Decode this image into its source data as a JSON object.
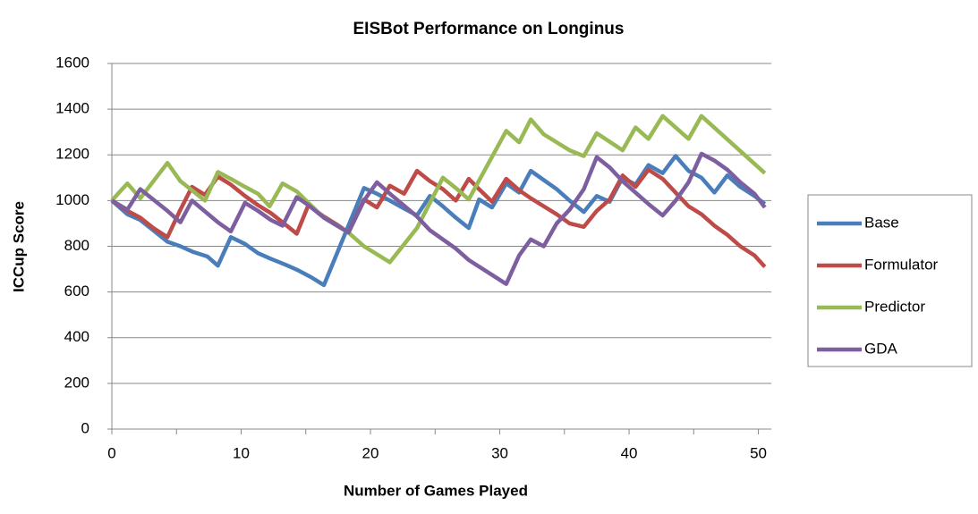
{
  "chart_data": {
    "type": "line",
    "title": "EISBot Performance on Longinus",
    "xlabel": "Number of Games Played",
    "ylabel": "ICCup Score",
    "xlim": [
      0,
      51
    ],
    "xticks": [
      0,
      10,
      20,
      30,
      40,
      50
    ],
    "xminorticks": [
      5,
      15,
      25,
      35,
      45
    ],
    "ylim": [
      0,
      1600
    ],
    "yticks": [
      0,
      200,
      400,
      600,
      800,
      1000,
      1200,
      1400,
      1600
    ],
    "grid": true,
    "legend": "right",
    "series": [
      {
        "name": "Base",
        "color": "#4a7ebb",
        "x": [
          0,
          1.2,
          2.2,
          3.2,
          4.3,
          5.3,
          6.3,
          7.4,
          8.2,
          9.2,
          10.3,
          11.3,
          12.3,
          13.4,
          14.4,
          15.4,
          16.4,
          19.5,
          20.5,
          21.5,
          22.6,
          23.6,
          24.6,
          25.6,
          26.6,
          27.6,
          28.4,
          29.4,
          30.5,
          31.5,
          32.4,
          33.4,
          34.4,
          35.4,
          36.5,
          37.5,
          38.5,
          39.5,
          40.5,
          41.5,
          42.6,
          43.6,
          44.6,
          45.6,
          46.6,
          47.6,
          48.6,
          49.7,
          50.5
        ],
        "values": [
          1000,
          940,
          915,
          870,
          820,
          800,
          775,
          755,
          715,
          840,
          810,
          770,
          745,
          720,
          695,
          665,
          630,
          1055,
          1030,
          1000,
          965,
          935,
          1020,
          975,
          925,
          880,
          1005,
          970,
          1075,
          1035,
          1130,
          1090,
          1050,
          1000,
          950,
          1020,
          995,
          1100,
          1070,
          1155,
          1120,
          1195,
          1130,
          1100,
          1035,
          1110,
          1060,
          1020,
          985
        ]
      },
      {
        "name": "Formulator",
        "color": "#be4b48",
        "x": [
          0,
          1.2,
          2.2,
          3.2,
          4.3,
          5.3,
          6.2,
          7.2,
          8.2,
          9.2,
          10.3,
          11.3,
          12.3,
          13.2,
          14.3,
          15.2,
          16.4,
          17.4,
          18.3,
          19.5,
          20.5,
          21.5,
          22.6,
          23.6,
          24.6,
          25.6,
          26.6,
          27.6,
          28.4,
          29.4,
          30.5,
          31.5,
          32.4,
          33.4,
          34.4,
          35.4,
          36.5,
          37.5,
          38.5,
          39.5,
          40.5,
          41.5,
          42.6,
          43.6,
          44.6,
          45.6,
          46.6,
          47.6,
          48.6,
          49.7,
          50.5
        ],
        "values": [
          1000,
          955,
          925,
          880,
          840,
          960,
          1060,
          1025,
          1105,
          1070,
          1020,
          980,
          945,
          905,
          855,
          980,
          930,
          895,
          860,
          1005,
          970,
          1065,
          1030,
          1130,
          1085,
          1050,
          1000,
          1095,
          1050,
          995,
          1095,
          1045,
          1010,
          975,
          940,
          900,
          885,
          955,
          1005,
          1110,
          1060,
          1135,
          1095,
          1035,
          975,
          940,
          890,
          850,
          800,
          760,
          710
        ]
      },
      {
        "name": "Predictor",
        "color": "#98b954",
        "x": [
          0,
          1.2,
          2.2,
          4.3,
          5.3,
          7.2,
          8.2,
          9.2,
          10.3,
          11.3,
          12.2,
          13.2,
          14.3,
          15.2,
          16.4,
          18.3,
          19.5,
          21.5,
          23.6,
          25.6,
          26.6,
          27.6,
          30.5,
          31.5,
          32.4,
          33.4,
          35.4,
          36.5,
          37.5,
          39.5,
          40.5,
          41.5,
          42.6,
          44.6,
          45.6,
          50.5
        ],
        "values": [
          1000,
          1075,
          1010,
          1165,
          1085,
          1000,
          1125,
          1095,
          1060,
          1030,
          975,
          1075,
          1040,
          990,
          925,
          860,
          800,
          730,
          880,
          1100,
          1055,
          1005,
          1305,
          1255,
          1355,
          1290,
          1220,
          1195,
          1295,
          1220,
          1320,
          1270,
          1370,
          1270,
          1370,
          1120
        ]
      },
      {
        "name": "GDA",
        "color": "#7d5fa0",
        "x": [
          0,
          1.2,
          2.2,
          4.3,
          5.3,
          6.2,
          8.2,
          9.2,
          10.3,
          11.3,
          12.3,
          13.2,
          14.3,
          15.2,
          16.4,
          18.3,
          19.5,
          20.5,
          21.5,
          23.6,
          24.6,
          26.6,
          27.6,
          30.5,
          31.5,
          32.4,
          33.4,
          34.4,
          35.4,
          36.5,
          37.5,
          38.5,
          39.5,
          40.5,
          41.5,
          42.6,
          43.6,
          44.6,
          45.6,
          46.6,
          47.6,
          48.6,
          49.7,
          50.5
        ],
        "values": [
          1000,
          960,
          1050,
          955,
          905,
          1000,
          905,
          865,
          990,
          955,
          915,
          890,
          1015,
          980,
          925,
          860,
          1000,
          1080,
          1030,
          930,
          870,
          790,
          740,
          635,
          760,
          830,
          800,
          900,
          960,
          1050,
          1190,
          1145,
          1085,
          1035,
          985,
          935,
          1000,
          1080,
          1205,
          1175,
          1135,
          1080,
          1030,
          970
        ]
      }
    ]
  }
}
